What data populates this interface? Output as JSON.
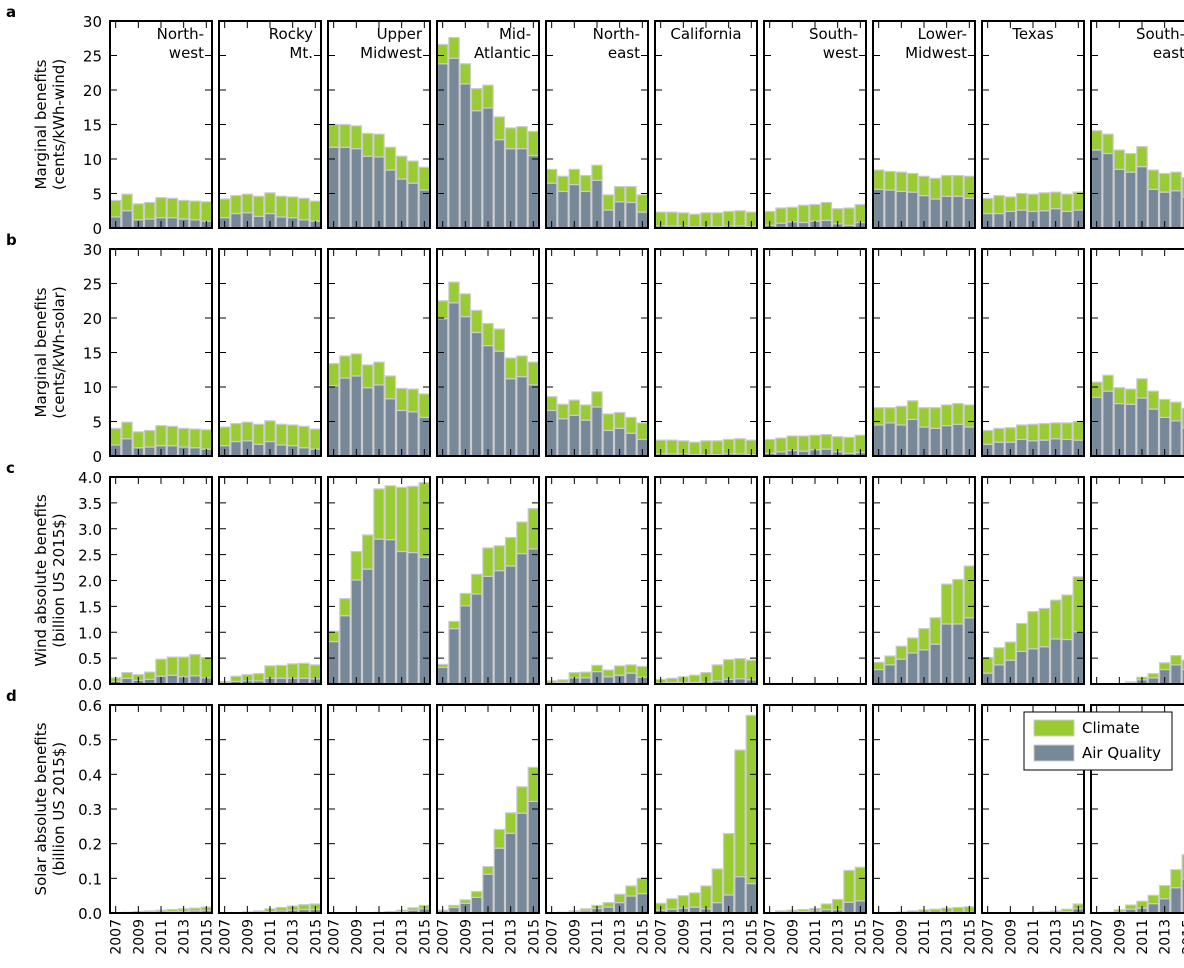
{
  "figure": {
    "years": [
      "2007",
      "2008",
      "2009",
      "2010",
      "2011",
      "2012",
      "2013",
      "2014",
      "2015"
    ],
    "year_tick_labels": [
      "2007",
      "2009",
      "2011",
      "2013",
      "2015"
    ],
    "regions": [
      "North-\nwest",
      "Rocky\nMt.",
      "Upper\nMidwest",
      "Mid-\nAtlantic",
      "North-\neast",
      "California",
      "South-\nwest",
      "Lower-\nMidwest",
      "Texas",
      "South-\neast"
    ],
    "legend": {
      "climate": "Climate",
      "air_quality": "Air Quality"
    },
    "colors": {
      "climate": "#99cc33",
      "air_quality": "#778899",
      "bar_edge": "#cccccc"
    }
  },
  "chart_data": [
    {
      "panel_letter": "a",
      "type": "bar",
      "stacked": true,
      "ylabel": [
        "Marginal benefits",
        "(cents/kWh-wind)"
      ],
      "ylim": [
        0,
        30
      ],
      "yticks": [
        0,
        5,
        10,
        15,
        20,
        25,
        30
      ],
      "ytick_labels": [
        "0",
        "5",
        "10",
        "15",
        "20",
        "25",
        "30"
      ],
      "series_names": [
        "Air Quality",
        "Climate"
      ],
      "regions": [
        {
          "aq": [
            1.6,
            2.5,
            1.2,
            1.3,
            1.5,
            1.5,
            1.3,
            1.2,
            1.0
          ],
          "cl": [
            2.4,
            2.4,
            2.3,
            2.4,
            2.9,
            2.8,
            2.7,
            2.7,
            2.8
          ]
        },
        {
          "aq": [
            1.5,
            2.1,
            2.2,
            1.7,
            2.1,
            1.6,
            1.5,
            1.2,
            1.0
          ],
          "cl": [
            2.7,
            2.6,
            2.7,
            2.9,
            3.0,
            3.0,
            3.0,
            3.1,
            2.9
          ]
        },
        {
          "aq": [
            11.7,
            11.7,
            11.5,
            10.4,
            10.3,
            8.4,
            7.1,
            6.5,
            5.5
          ],
          "cl": [
            3.3,
            3.3,
            3.3,
            3.3,
            3.3,
            3.3,
            3.3,
            3.2,
            3.3
          ]
        },
        {
          "aq": [
            23.8,
            24.6,
            20.9,
            17.0,
            17.4,
            12.8,
            11.5,
            11.5,
            10.5
          ],
          "cl": [
            2.8,
            3.0,
            2.9,
            3.2,
            3.3,
            3.3,
            3.0,
            3.2,
            3.5
          ]
        },
        {
          "aq": [
            6.5,
            5.3,
            6.3,
            5.3,
            6.9,
            2.6,
            3.8,
            3.7,
            2.3
          ],
          "cl": [
            2.0,
            2.2,
            2.2,
            2.3,
            2.2,
            2.2,
            2.2,
            2.3,
            2.5
          ]
        },
        {
          "aq": [
            0.3,
            0.3,
            0.3,
            0.2,
            0.2,
            0.2,
            0.3,
            0.3,
            0.2
          ],
          "cl": [
            2.0,
            2.0,
            1.9,
            1.8,
            2.0,
            2.0,
            2.1,
            2.2,
            2.1
          ]
        },
        {
          "aq": [
            0.4,
            0.7,
            0.9,
            0.8,
            1.0,
            1.1,
            0.6,
            0.4,
            0.8
          ],
          "cl": [
            2.0,
            2.2,
            2.1,
            2.5,
            2.4,
            2.6,
            2.2,
            2.5,
            2.6
          ]
        },
        {
          "aq": [
            5.6,
            5.5,
            5.3,
            5.2,
            4.7,
            4.2,
            4.6,
            4.6,
            4.3
          ],
          "cl": [
            2.8,
            2.7,
            2.8,
            2.7,
            2.8,
            3.0,
            3.0,
            3.0,
            3.2
          ]
        },
        {
          "aq": [
            2.1,
            2.1,
            2.4,
            2.6,
            2.4,
            2.5,
            2.8,
            2.4,
            2.6
          ],
          "cl": [
            2.2,
            2.6,
            2.1,
            2.4,
            2.5,
            2.6,
            2.4,
            2.5,
            2.6
          ]
        },
        {
          "aq": [
            11.3,
            10.8,
            8.5,
            8.1,
            8.9,
            5.6,
            5.2,
            5.4,
            4.5
          ],
          "cl": [
            2.8,
            2.8,
            2.8,
            2.7,
            2.9,
            2.8,
            2.7,
            2.7,
            2.8
          ]
        }
      ]
    },
    {
      "panel_letter": "b",
      "type": "bar",
      "stacked": true,
      "ylabel": [
        "Marginal benefits",
        "(cents/kWh-solar)"
      ],
      "ylim": [
        0,
        30
      ],
      "yticks": [
        0,
        5,
        10,
        15,
        20,
        25,
        30
      ],
      "ytick_labels": [
        "0",
        "5",
        "10",
        "15",
        "20",
        "25",
        "30"
      ],
      "series_names": [
        "Air Quality",
        "Climate"
      ],
      "regions": [
        {
          "aq": [
            1.6,
            2.5,
            1.2,
            1.3,
            1.5,
            1.5,
            1.3,
            1.2,
            1.0
          ],
          "cl": [
            2.4,
            2.4,
            2.3,
            2.4,
            2.9,
            2.8,
            2.7,
            2.7,
            2.8
          ]
        },
        {
          "aq": [
            1.5,
            2.1,
            2.2,
            1.7,
            2.1,
            1.6,
            1.5,
            1.2,
            1.0
          ],
          "cl": [
            2.7,
            2.6,
            2.7,
            2.9,
            3.0,
            3.0,
            3.0,
            3.1,
            2.9
          ]
        },
        {
          "aq": [
            10.2,
            11.3,
            11.6,
            9.9,
            10.3,
            8.3,
            6.6,
            6.4,
            5.6
          ],
          "cl": [
            3.2,
            3.2,
            3.2,
            3.3,
            3.3,
            3.3,
            3.2,
            3.3,
            3.4
          ]
        },
        {
          "aq": [
            19.9,
            22.2,
            20.2,
            17.9,
            16.0,
            15.2,
            11.2,
            11.5,
            10.3
          ],
          "cl": [
            2.6,
            3.0,
            3.3,
            3.2,
            3.2,
            3.2,
            3.0,
            3.0,
            3.3
          ]
        },
        {
          "aq": [
            6.6,
            5.4,
            5.9,
            5.2,
            7.1,
            3.7,
            4.0,
            3.3,
            2.4
          ],
          "cl": [
            2.0,
            2.1,
            2.2,
            2.2,
            2.2,
            2.4,
            2.3,
            2.3,
            2.4
          ]
        },
        {
          "aq": [
            0.3,
            0.3,
            0.3,
            0.2,
            0.2,
            0.2,
            0.3,
            0.3,
            0.2
          ],
          "cl": [
            2.0,
            2.0,
            1.9,
            1.8,
            2.0,
            2.0,
            2.1,
            2.2,
            2.1
          ]
        },
        {
          "aq": [
            0.4,
            0.6,
            0.8,
            0.7,
            0.9,
            1.0,
            0.6,
            0.4,
            0.5
          ],
          "cl": [
            2.0,
            2.0,
            2.1,
            2.2,
            2.1,
            2.1,
            2.2,
            2.3,
            2.5
          ]
        },
        {
          "aq": [
            4.5,
            4.8,
            4.5,
            5.3,
            4.2,
            4.0,
            4.4,
            4.6,
            4.2
          ],
          "cl": [
            2.5,
            2.2,
            2.7,
            2.7,
            2.8,
            3.0,
            3.0,
            3.0,
            3.2
          ]
        },
        {
          "aq": [
            1.7,
            2.0,
            2.0,
            2.4,
            2.2,
            2.3,
            2.5,
            2.4,
            2.3
          ],
          "cl": [
            2.0,
            2.0,
            2.1,
            2.1,
            2.4,
            2.4,
            2.3,
            2.4,
            2.7
          ]
        },
        {
          "aq": [
            8.5,
            9.4,
            7.6,
            7.5,
            8.4,
            6.8,
            5.6,
            5.1,
            4.1
          ],
          "cl": [
            2.2,
            2.3,
            2.3,
            2.2,
            2.8,
            2.6,
            2.6,
            2.7,
            2.8
          ]
        }
      ]
    },
    {
      "panel_letter": "c",
      "type": "bar",
      "stacked": true,
      "ylabel": [
        "Wind absolute benefits",
        "(billion US 2015$)"
      ],
      "ylim": [
        0,
        4.0
      ],
      "yticks": [
        0,
        0.5,
        1.0,
        1.5,
        2.0,
        2.5,
        3.0,
        3.5,
        4.0
      ],
      "ytick_labels": [
        "0.0",
        "0.5",
        "1.0",
        "1.5",
        "2.0",
        "2.5",
        "3.0",
        "3.5",
        "4.0"
      ],
      "series_names": [
        "Air Quality",
        "Climate"
      ],
      "regions": [
        {
          "aq": [
            0.05,
            0.11,
            0.07,
            0.09,
            0.15,
            0.17,
            0.14,
            0.16,
            0.12
          ],
          "cl": [
            0.07,
            0.11,
            0.11,
            0.14,
            0.33,
            0.35,
            0.38,
            0.41,
            0.39
          ]
        },
        {
          "aq": [
            0.02,
            0.05,
            0.06,
            0.06,
            0.11,
            0.11,
            0.11,
            0.11,
            0.1
          ],
          "cl": [
            0.03,
            0.1,
            0.12,
            0.14,
            0.24,
            0.25,
            0.28,
            0.29,
            0.27
          ]
        },
        {
          "aq": [
            0.82,
            1.32,
            2.01,
            2.22,
            2.8,
            2.79,
            2.56,
            2.54,
            2.45
          ],
          "cl": [
            0.2,
            0.33,
            0.55,
            0.66,
            0.97,
            1.04,
            1.24,
            1.28,
            1.44
          ]
        },
        {
          "aq": [
            0.32,
            1.07,
            1.51,
            1.74,
            2.08,
            2.19,
            2.28,
            2.52,
            2.61
          ],
          "cl": [
            0.06,
            0.14,
            0.24,
            0.38,
            0.55,
            0.48,
            0.55,
            0.61,
            0.78
          ]
        },
        {
          "aq": [
            0.02,
            0.03,
            0.12,
            0.12,
            0.24,
            0.14,
            0.17,
            0.21,
            0.13
          ],
          "cl": [
            0.04,
            0.05,
            0.1,
            0.11,
            0.12,
            0.13,
            0.18,
            0.16,
            0.21
          ]
        },
        {
          "aq": [
            0.02,
            0.03,
            0.03,
            0.03,
            0.04,
            0.06,
            0.09,
            0.1,
            0.08
          ],
          "cl": [
            0.07,
            0.08,
            0.11,
            0.14,
            0.18,
            0.31,
            0.38,
            0.39,
            0.38
          ]
        },
        {
          "aq": [
            0.0,
            0.0,
            0.0,
            0.0,
            0.0,
            0.0,
            0.0,
            0.0,
            0.0
          ],
          "cl": [
            0.01,
            0.01,
            0.01,
            0.01,
            0.01,
            0.01,
            0.01,
            0.01,
            0.01
          ]
        },
        {
          "aq": [
            0.28,
            0.37,
            0.48,
            0.6,
            0.66,
            0.77,
            1.16,
            1.16,
            1.28
          ],
          "cl": [
            0.14,
            0.17,
            0.25,
            0.29,
            0.41,
            0.51,
            0.77,
            0.86,
            1.0
          ]
        },
        {
          "aq": [
            0.21,
            0.37,
            0.46,
            0.63,
            0.68,
            0.72,
            0.87,
            0.86,
            1.01
          ],
          "cl": [
            0.3,
            0.33,
            0.35,
            0.54,
            0.72,
            0.74,
            0.75,
            0.86,
            1.06
          ]
        },
        {
          "aq": [
            0.0,
            0.0,
            0.0,
            0.02,
            0.08,
            0.12,
            0.28,
            0.37,
            0.28
          ],
          "cl": [
            0.0,
            0.0,
            0.0,
            0.02,
            0.05,
            0.08,
            0.13,
            0.18,
            0.18
          ]
        }
      ]
    },
    {
      "panel_letter": "d",
      "type": "bar",
      "stacked": true,
      "ylabel": [
        "Solar absolute benefits",
        "(billion US 2015$)"
      ],
      "ylim": [
        0,
        0.6
      ],
      "yticks": [
        0,
        0.1,
        0.2,
        0.3,
        0.4,
        0.5,
        0.6
      ],
      "ytick_labels": [
        "0.0",
        "0.1",
        "0.2",
        "0.3",
        "0.4",
        "0.5",
        "0.6"
      ],
      "series_names": [
        "Air Quality",
        "Climate"
      ],
      "regions": [
        {
          "aq": [
            0.0,
            0.0,
            0.001,
            0.002,
            0.003,
            0.004,
            0.005,
            0.006,
            0.007
          ],
          "cl": [
            0.001,
            0.002,
            0.003,
            0.004,
            0.005,
            0.006,
            0.007,
            0.008,
            0.01
          ]
        },
        {
          "aq": [
            0.0,
            0.0,
            0.001,
            0.002,
            0.004,
            0.006,
            0.008,
            0.01,
            0.01
          ],
          "cl": [
            0.0,
            0.001,
            0.002,
            0.004,
            0.008,
            0.01,
            0.012,
            0.014,
            0.016
          ]
        },
        {
          "aq": [
            0.0,
            0.0,
            0.0,
            0.0,
            0.001,
            0.002,
            0.004,
            0.008,
            0.012
          ],
          "cl": [
            0.0,
            0.0,
            0.0,
            0.0,
            0.001,
            0.002,
            0.004,
            0.007,
            0.01
          ]
        },
        {
          "aq": [
            0.006,
            0.016,
            0.028,
            0.045,
            0.112,
            0.187,
            0.23,
            0.288,
            0.322
          ],
          "cl": [
            0.002,
            0.006,
            0.01,
            0.017,
            0.022,
            0.054,
            0.059,
            0.076,
            0.098
          ]
        },
        {
          "aq": [
            0.0,
            0.001,
            0.003,
            0.006,
            0.013,
            0.017,
            0.03,
            0.049,
            0.056
          ],
          "cl": [
            0.0,
            0.001,
            0.003,
            0.006,
            0.009,
            0.013,
            0.024,
            0.029,
            0.044
          ]
        },
        {
          "aq": [
            0.008,
            0.011,
            0.014,
            0.017,
            0.012,
            0.03,
            0.052,
            0.105,
            0.085
          ],
          "cl": [
            0.02,
            0.03,
            0.036,
            0.041,
            0.066,
            0.097,
            0.177,
            0.365,
            0.485
          ]
        },
        {
          "aq": [
            0.0,
            0.002,
            0.003,
            0.004,
            0.006,
            0.01,
            0.009,
            0.031,
            0.035
          ],
          "cl": [
            0.0,
            0.004,
            0.005,
            0.006,
            0.007,
            0.016,
            0.03,
            0.092,
            0.097
          ]
        },
        {
          "aq": [
            0.0,
            0.0,
            0.0,
            0.001,
            0.001,
            0.001,
            0.002,
            0.002,
            0.002
          ],
          "cl": [
            0.0,
            0.001,
            0.003,
            0.005,
            0.008,
            0.01,
            0.012,
            0.014,
            0.016
          ]
        },
        {
          "aq": [
            0.0,
            0.0,
            0.0,
            0.0,
            0.0,
            0.001,
            0.002,
            0.004,
            0.012
          ],
          "cl": [
            0.0,
            0.0,
            0.0,
            0.0,
            0.001,
            0.002,
            0.004,
            0.007,
            0.014
          ]
        },
        {
          "aq": [
            0.0,
            0.001,
            0.003,
            0.011,
            0.014,
            0.027,
            0.041,
            0.073,
            0.098
          ],
          "cl": [
            0.0,
            0.001,
            0.006,
            0.012,
            0.02,
            0.024,
            0.038,
            0.052,
            0.07
          ]
        }
      ]
    }
  ]
}
